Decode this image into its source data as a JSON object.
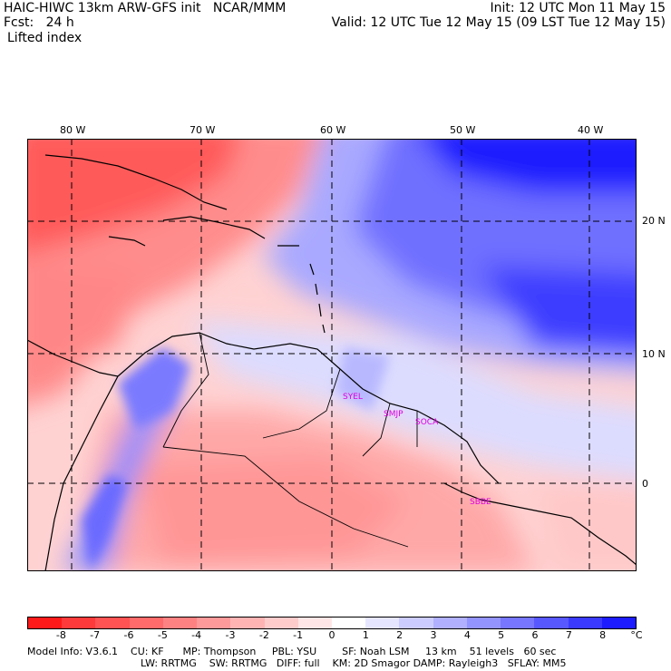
{
  "header": {
    "title": "HAIC-HIWC 13km ARW-GFS init   NCAR/MMM",
    "fcst": "Fcst:   24 h",
    "field": "Lifted index",
    "init": "Init: 12 UTC Mon 11 May 15",
    "valid": "Valid: 12 UTC Tue 12 May 15 (09 LST Tue 12 May 15)"
  },
  "map": {
    "lon_labels": [
      "80 W",
      "70 W",
      "60 W",
      "50 W",
      "40 W"
    ],
    "lat_labels": [
      "20 N",
      "10 N",
      "0"
    ],
    "stations": [
      "SYEL",
      "SMJP",
      "SOCA",
      "SBBE"
    ],
    "station_color": "#e000e0"
  },
  "colorbar": {
    "ticks": [
      "-8",
      "-7",
      "-6",
      "-5",
      "-4",
      "-3",
      "-2",
      "-1",
      "0",
      "1",
      "2",
      "3",
      "4",
      "5",
      "6",
      "7",
      "8"
    ],
    "unit": "°C",
    "colors": [
      "#ff1a1a",
      "#ff3a3a",
      "#ff5252",
      "#ff6a6a",
      "#ff8282",
      "#ff9a9a",
      "#ffb4b4",
      "#ffcccc",
      "#ffe6e6",
      "#ffffff",
      "#e6e6ff",
      "#ccccff",
      "#b0b0ff",
      "#9494ff",
      "#7676ff",
      "#5858ff",
      "#3a3aff",
      "#1c1cff"
    ]
  },
  "model_info": {
    "line1": "Model Info: V3.6.1    CU: KF      MP: Thompson     PBL: YSU        SF: Noah LSM     13 km    51 levels   60 sec",
    "line2": "LW: RRTMG    SW: RRTMG   DIFF: full    KM: 2D Smagor DAMP: Rayleigh3   SFLAY: MM5"
  }
}
